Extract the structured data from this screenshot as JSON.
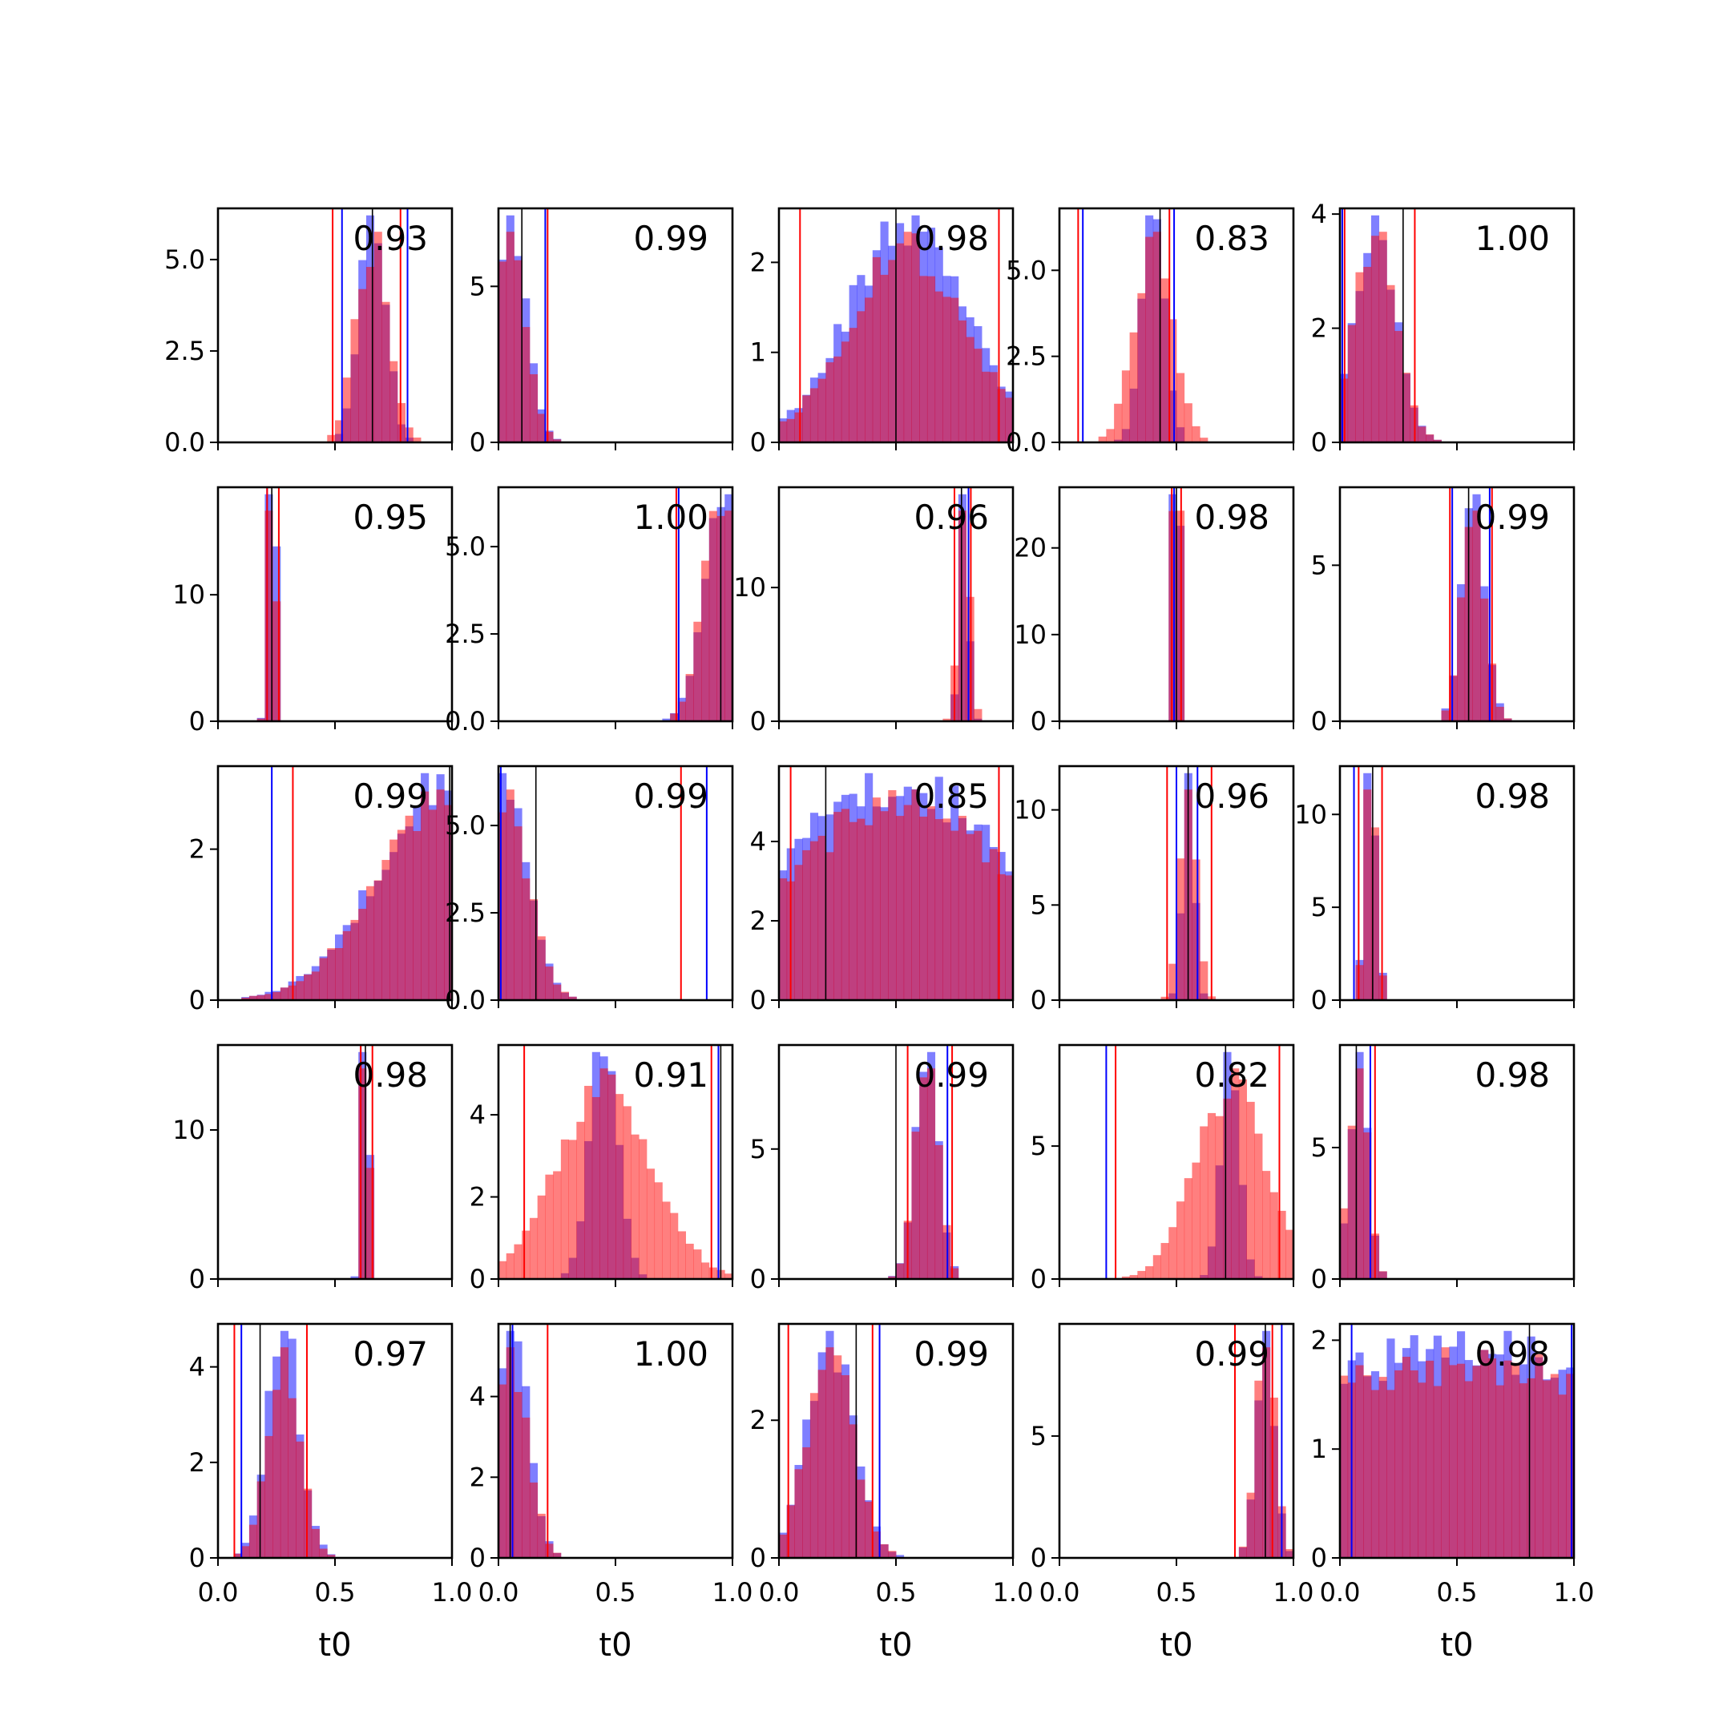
{
  "chart_data": {
    "type": "histogram-grid",
    "rows": 5,
    "cols": 5,
    "xlim": [
      0,
      1
    ],
    "x_ticks": [
      "0.0",
      "0.5",
      "1.0"
    ],
    "xlabel": "t0",
    "series_colors": {
      "blue": "#0000ff",
      "red": "#ff0000",
      "overlap": "#c0306e",
      "marker": "#000000"
    },
    "panels": [
      {
        "label": "0.93",
        "ymax": 6.4,
        "yticks": [
          "0.0",
          "2.5",
          "5.0"
        ],
        "ytick_vals": [
          0,
          2.5,
          5.0
        ],
        "mu": 0.66,
        "sd_b": 0.055,
        "sd_r": 0.07,
        "blue_lines": [
          0.53,
          0.81
        ],
        "red_lines": [
          0.49,
          0.78
        ],
        "black_line": 0.66
      },
      {
        "label": "0.99",
        "ymax": 7.5,
        "yticks": [
          "0",
          "5"
        ],
        "ytick_vals": [
          0,
          5
        ],
        "mu": 0.05,
        "sd_b": 0.07,
        "sd_r": 0.07,
        "blue_lines": [
          0.2
        ],
        "red_lines": [
          0.21
        ],
        "black_line": 0.1
      },
      {
        "label": "0.98",
        "ymax": 2.6,
        "yticks": [
          "0",
          "1",
          "2"
        ],
        "ytick_vals": [
          0,
          1,
          2
        ],
        "mu": 0.55,
        "sd_b": 0.25,
        "sd_r": 0.25,
        "blue_lines": [],
        "red_lines": [
          0.09,
          0.94
        ],
        "black_line": 0.5
      },
      {
        "label": "0.83",
        "ymax": 6.8,
        "yticks": [
          "0.0",
          "2.5",
          "5.0"
        ],
        "ytick_vals": [
          0,
          2.5,
          5.0
        ],
        "mu": 0.4,
        "sd_b": 0.05,
        "sd_r": 0.08,
        "blue_lines": [
          0.1,
          0.49
        ],
        "red_lines": [
          0.08,
          0.47
        ],
        "black_line": 0.43
      },
      {
        "label": "1.00",
        "ymax": 4.1,
        "yticks": [
          "0",
          "2",
          "4"
        ],
        "ytick_vals": [
          0,
          2,
          4
        ],
        "mu": 0.15,
        "sd_b": 0.09,
        "sd_r": 0.09,
        "blue_lines": [
          0.01
        ],
        "red_lines": [
          0.02,
          0.32
        ],
        "black_line": 0.27
      },
      {
        "label": "0.95",
        "ymax": 18.5,
        "yticks": [
          "0",
          "10"
        ],
        "ytick_vals": [
          0,
          10
        ],
        "mu": 0.23,
        "sd_b": 0.015,
        "sd_r": 0.015,
        "blue_lines": [
          0.21
        ],
        "red_lines": [
          0.21,
          0.26
        ],
        "black_line": 0.23
      },
      {
        "label": "1.00",
        "ymax": 6.7,
        "yticks": [
          "0.0",
          "2.5",
          "5.0"
        ],
        "ytick_vals": [
          0,
          2.5,
          5.0
        ],
        "mu": 0.96,
        "sd_b": 0.08,
        "sd_r": 0.08,
        "blue_lines": [
          0.77
        ],
        "red_lines": [
          0.76
        ],
        "black_line": 0.95
      },
      {
        "label": "0.96",
        "ymax": 17.5,
        "yticks": [
          "0",
          "10"
        ],
        "ytick_vals": [
          0,
          10
        ],
        "mu": 0.79,
        "sd_b": 0.02,
        "sd_r": 0.025,
        "blue_lines": [
          0.81
        ],
        "red_lines": [
          0.75,
          0.82
        ],
        "black_line": 0.78
      },
      {
        "label": "0.98",
        "ymax": 27,
        "yticks": [
          "0",
          "10",
          "20"
        ],
        "ytick_vals": [
          0,
          10,
          20
        ],
        "mu": 0.5,
        "sd_b": 0.012,
        "sd_r": 0.015,
        "blue_lines": [
          0.49
        ],
        "red_lines": [
          0.48,
          0.52
        ],
        "black_line": 0.5
      },
      {
        "label": "0.99",
        "ymax": 7.5,
        "yticks": [
          "0",
          "5"
        ],
        "ytick_vals": [
          0,
          5
        ],
        "mu": 0.57,
        "sd_b": 0.05,
        "sd_r": 0.05,
        "blue_lines": [
          0.48,
          0.64
        ],
        "red_lines": [
          0.47,
          0.65
        ],
        "black_line": 0.55
      },
      {
        "label": "0.99",
        "ymax": 3.1,
        "yticks": [
          "0",
          "2"
        ],
        "ytick_vals": [
          0,
          2
        ],
        "mu": 1.0,
        "sd_b": 0.3,
        "sd_r": 0.3,
        "blue_lines": [
          0.23
        ],
        "red_lines": [
          0.32
        ],
        "black_line": 0.99
      },
      {
        "label": "0.99",
        "ymax": 6.7,
        "yticks": [
          "0.0",
          "2.5",
          "5.0"
        ],
        "ytick_vals": [
          0,
          2.5,
          5.0
        ],
        "mu": 0.03,
        "sd_b": 0.1,
        "sd_r": 0.1,
        "blue_lines": [
          0.01,
          0.89
        ],
        "red_lines": [
          0.78
        ],
        "black_line": 0.16
      },
      {
        "label": "0.85",
        "ymax": 5.9,
        "yticks": [
          "0",
          "2",
          "4"
        ],
        "ytick_vals": [
          0,
          2,
          4
        ],
        "mu": 0.5,
        "sd_b": 0.5,
        "sd_r": 0.5,
        "blue_lines": [
          0.94
        ],
        "red_lines": [
          0.05,
          0.94
        ],
        "black_line": 0.2
      },
      {
        "label": "0.96",
        "ymax": 12.3,
        "yticks": [
          "0",
          "5",
          "10"
        ],
        "ytick_vals": [
          0,
          5,
          10
        ],
        "mu": 0.55,
        "sd_b": 0.025,
        "sd_r": 0.035,
        "blue_lines": [
          0.5,
          0.59
        ],
        "red_lines": [
          0.46,
          0.65
        ],
        "black_line": 0.55
      },
      {
        "label": "0.98",
        "ymax": 12.6,
        "yticks": [
          "0",
          "5",
          "10"
        ],
        "ytick_vals": [
          0,
          5,
          10
        ],
        "mu": 0.13,
        "sd_b": 0.025,
        "sd_r": 0.025,
        "blue_lines": [
          0.06
        ],
        "red_lines": [
          0.08,
          0.18
        ],
        "black_line": 0.14
      },
      {
        "label": "0.98",
        "ymax": 15.7,
        "yticks": [
          "0",
          "10"
        ],
        "ytick_vals": [
          0,
          10
        ],
        "mu": 0.63,
        "sd_b": 0.015,
        "sd_r": 0.015,
        "blue_lines": [
          0.61
        ],
        "red_lines": [
          0.61,
          0.66
        ],
        "black_line": 0.63
      },
      {
        "label": "0.91",
        "ymax": 5.7,
        "yticks": [
          "0",
          "2",
          "4"
        ],
        "ytick_vals": [
          0,
          2,
          4
        ],
        "mu": 0.45,
        "sd_b": 0.06,
        "sd_r": 0.2,
        "blue_lines": [
          0.94
        ],
        "red_lines": [
          0.11,
          0.91
        ],
        "black_line": 0.95
      },
      {
        "label": "0.99",
        "ymax": 9.0,
        "yticks": [
          "0",
          "5"
        ],
        "ytick_vals": [
          0,
          5
        ],
        "mu": 0.63,
        "sd_b": 0.05,
        "sd_r": 0.05,
        "blue_lines": [
          0.72
        ],
        "red_lines": [
          0.55,
          0.74
        ],
        "black_line": 0.5
      },
      {
        "label": "0.82",
        "ymax": 8.8,
        "yticks": [
          "0",
          "5"
        ],
        "ytick_vals": [
          0,
          5
        ],
        "mu": 0.73,
        "sd_b": 0.04,
        "sd_r": 0.15,
        "blue_lines": [
          0.2
        ],
        "red_lines": [
          0.24,
          0.94
        ],
        "black_line": 0.71
      },
      {
        "label": "0.98",
        "ymax": 8.9,
        "yticks": [
          "0",
          "5"
        ],
        "ytick_vals": [
          0,
          5
        ],
        "mu": 0.08,
        "sd_b": 0.04,
        "sd_r": 0.04,
        "blue_lines": [
          0.13
        ],
        "red_lines": [
          0.15
        ],
        "black_line": 0.07
      },
      {
        "label": "0.97",
        "ymax": 4.9,
        "yticks": [
          "0",
          "2",
          "4"
        ],
        "ytick_vals": [
          0,
          2,
          4
        ],
        "mu": 0.28,
        "sd_b": 0.07,
        "sd_r": 0.07,
        "blue_lines": [
          0.1
        ],
        "red_lines": [
          0.07,
          0.38
        ],
        "black_line": 0.18
      },
      {
        "label": "1.00",
        "ymax": 5.8,
        "yticks": [
          "0",
          "2",
          "4"
        ],
        "ytick_vals": [
          0,
          2,
          4
        ],
        "mu": 0.06,
        "sd_b": 0.07,
        "sd_r": 0.07,
        "blue_lines": [
          0.06
        ],
        "red_lines": [
          0.21
        ],
        "black_line": 0.05
      },
      {
        "label": "0.99",
        "ymax": 3.4,
        "yticks": [
          "0",
          "2"
        ],
        "ytick_vals": [
          0,
          2
        ],
        "mu": 0.22,
        "sd_b": 0.1,
        "sd_r": 0.1,
        "blue_lines": [
          0.43
        ],
        "red_lines": [
          0.04,
          0.4
        ],
        "black_line": 0.33
      },
      {
        "label": "0.99",
        "ymax": 9.6,
        "yticks": [
          "0",
          "5"
        ],
        "ytick_vals": [
          0,
          5
        ],
        "mu": 0.88,
        "sd_b": 0.04,
        "sd_r": 0.04,
        "blue_lines": [
          0.95
        ],
        "red_lines": [
          0.75,
          0.91
        ],
        "black_line": 0.88
      },
      {
        "label": "0.98",
        "ymax": 2.15,
        "yticks": [
          "0",
          "1",
          "2"
        ],
        "ytick_vals": [
          0,
          1,
          2
        ],
        "mu": 0.5,
        "sd_b": 1.0,
        "sd_r": 1.0,
        "blue_lines": [
          0.05,
          0.99
        ],
        "red_lines": [],
        "black_line": 0.81
      }
    ]
  }
}
